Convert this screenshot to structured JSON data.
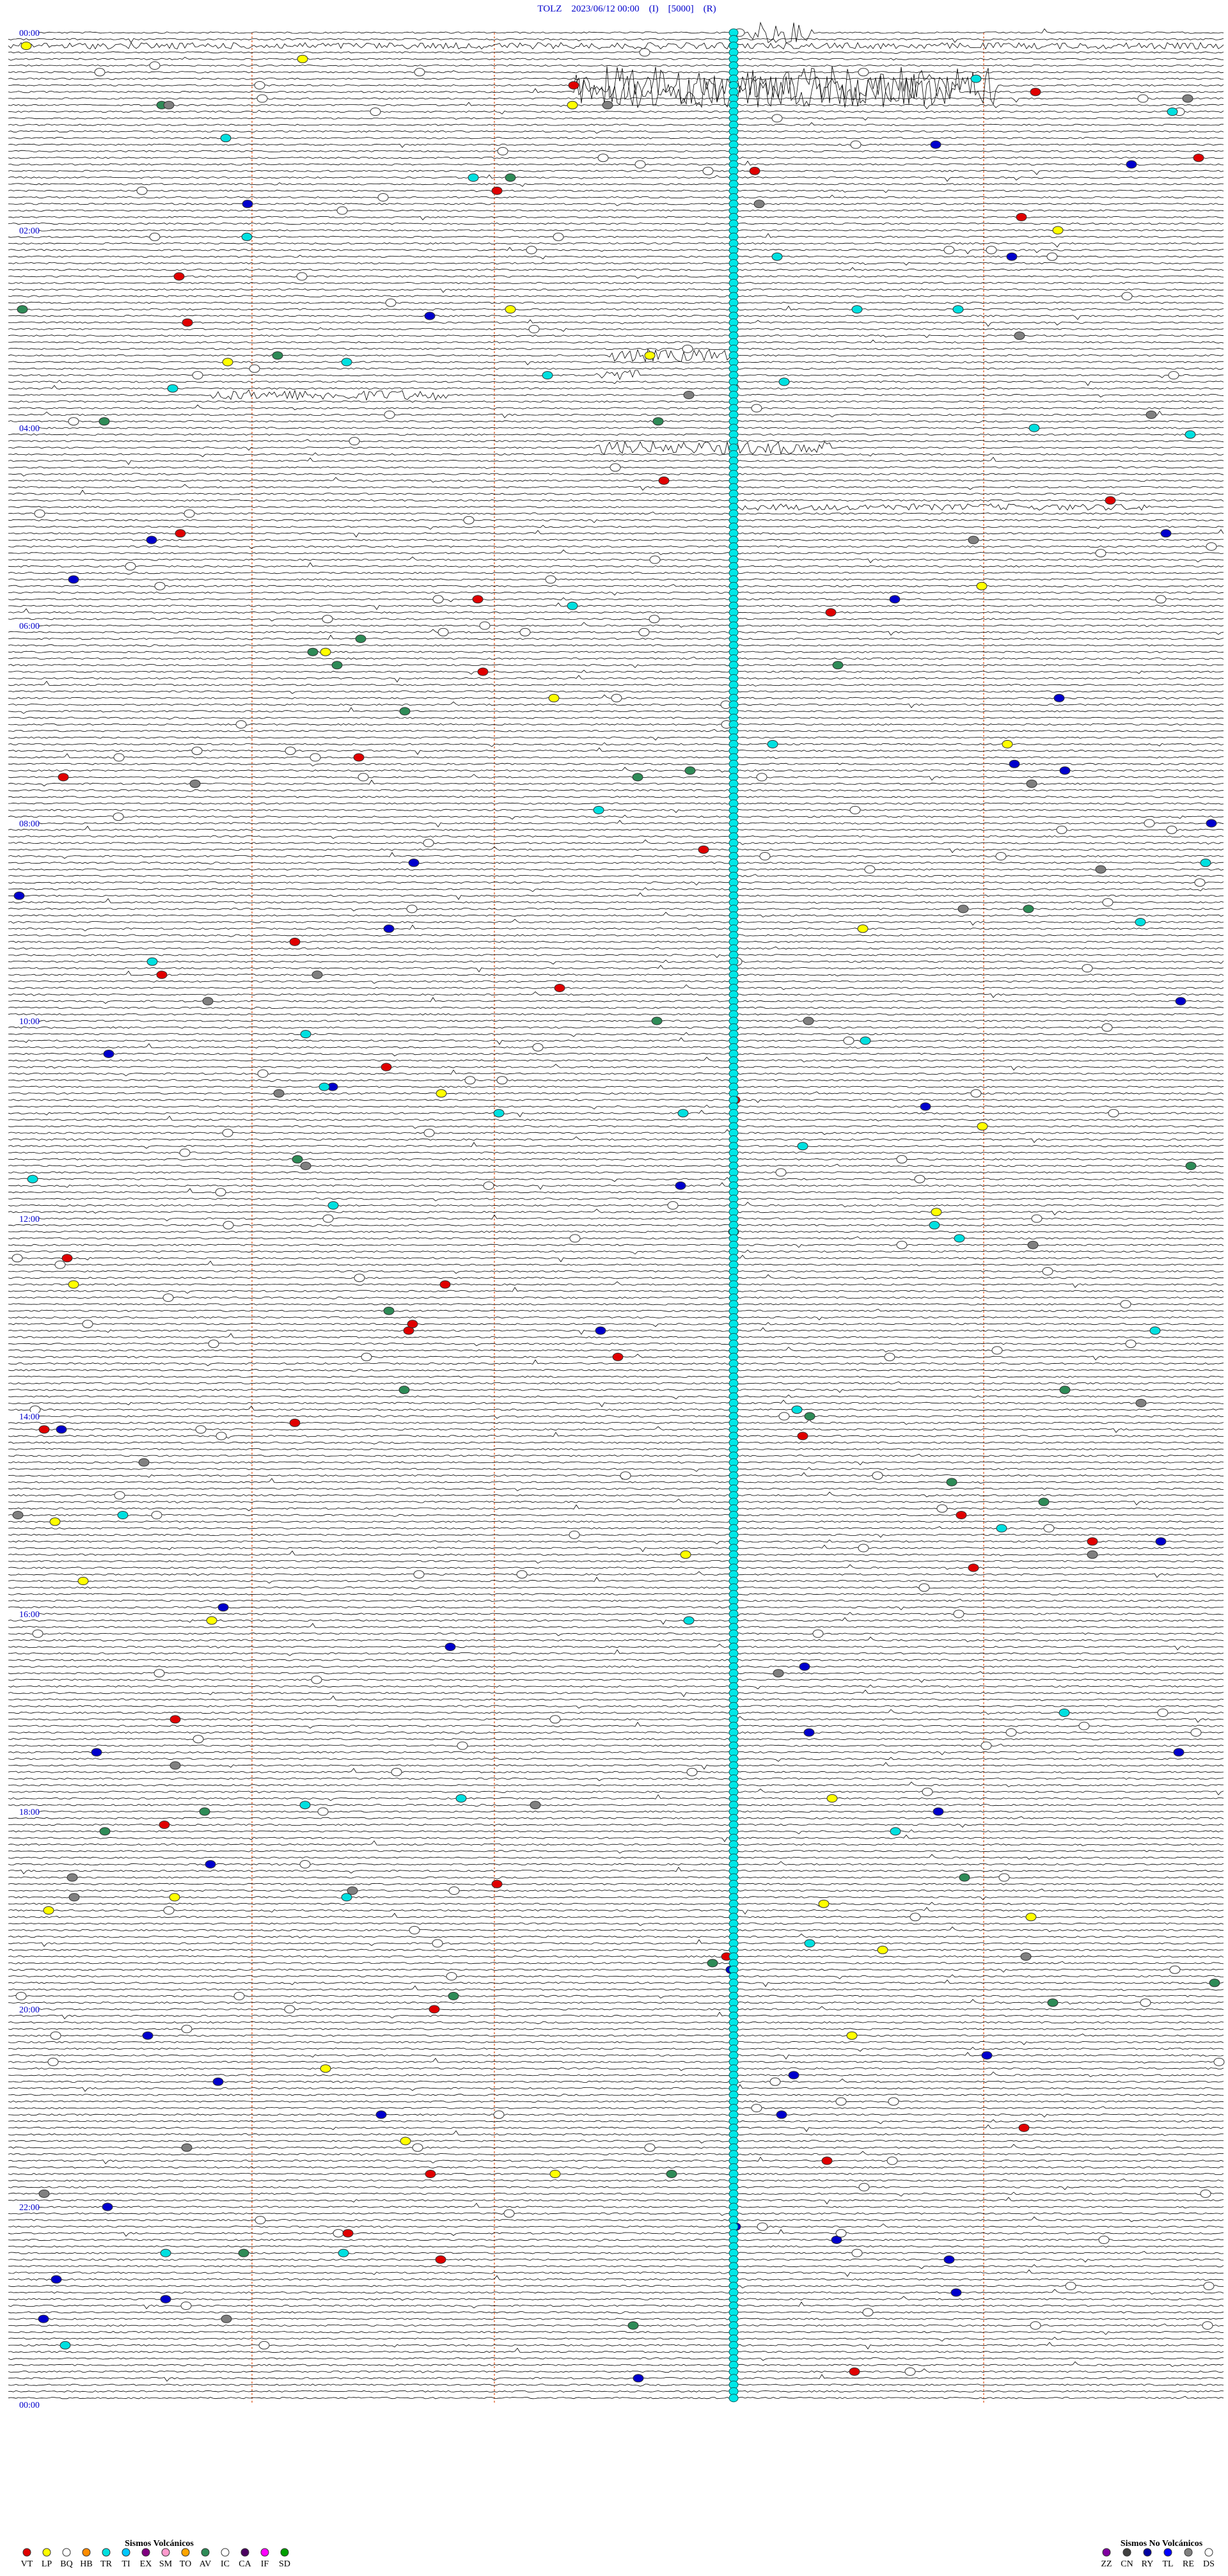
{
  "header": {
    "title": "TOLZ    2023/06/12 00:00    (I)    [5000]    (R)"
  },
  "time_labels": [
    "00:00",
    "02:00",
    "04:00",
    "06:00",
    "08:00",
    "10:00",
    "12:00",
    "14:00",
    "16:00",
    "18:00",
    "20:00",
    "22:00",
    "00:00"
  ],
  "legend_volcanic": {
    "title": "Sismos Volcánicos",
    "items": [
      {
        "code": "VT",
        "color": "#e00000"
      },
      {
        "code": "LP",
        "color": "#ffff00"
      },
      {
        "code": "BQ",
        "color": "#ffffff"
      },
      {
        "code": "HB",
        "color": "#ff8c00"
      },
      {
        "code": "TR",
        "color": "#00e0e0"
      },
      {
        "code": "TI",
        "color": "#00c8ff"
      },
      {
        "code": "EX",
        "color": "#800080"
      },
      {
        "code": "SM",
        "color": "#ff99cc"
      },
      {
        "code": "TO",
        "color": "#ffa500"
      },
      {
        "code": "AV",
        "color": "#2e8b57"
      },
      {
        "code": "IC",
        "color": "#ffffff"
      },
      {
        "code": "CA",
        "color": "#4b0060"
      },
      {
        "code": "IF",
        "color": "#ff00ff"
      },
      {
        "code": "SD",
        "color": "#00a000"
      }
    ]
  },
  "legend_non_volcanic": {
    "title": "Sismos No Volcánicos",
    "items": [
      {
        "code": "ZZ",
        "color": "#8000a0"
      },
      {
        "code": "CN",
        "color": "#404040"
      },
      {
        "code": "RY",
        "color": "#0000a0"
      },
      {
        "code": "TL",
        "color": "#0000ff"
      },
      {
        "code": "RE",
        "color": "#808080"
      },
      {
        "code": "DS",
        "color": "#ffffff"
      }
    ]
  }
}
